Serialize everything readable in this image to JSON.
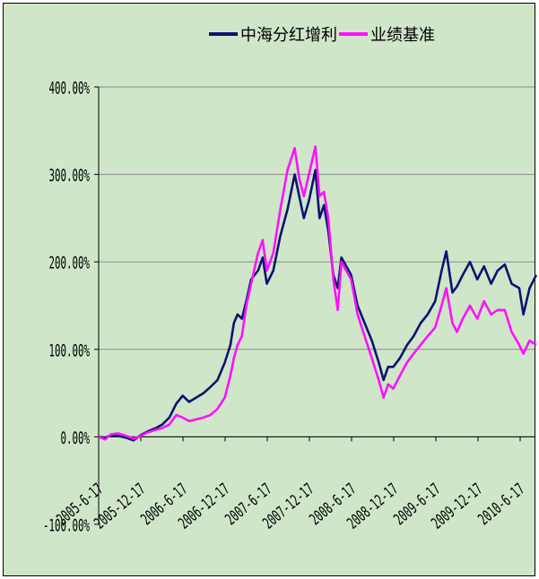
{
  "chart_data": {
    "type": "line",
    "title": "",
    "xlabel": "",
    "ylabel": "",
    "ylim": [
      -1.0,
      4.0
    ],
    "y_tick_labels": [
      "400.00%",
      "300.00%",
      "200.00%",
      "100.00%",
      "0.00%",
      "-100.00%"
    ],
    "x_tick_labels": [
      "2005-6-17",
      "2005-12-17",
      "2006-6-17",
      "2006-12-17",
      "2007-6-17",
      "2007-12-17",
      "2008-6-17",
      "2008-12-17",
      "2009-6-17",
      "2009-12-17",
      "2010-6-17"
    ],
    "grid": "horizontal",
    "legend_position": "top",
    "series": [
      {
        "name": "中海分红增利",
        "color": "#0a1470",
        "points": [
          [
            "2005-06-17",
            0.0
          ],
          [
            "2005-07-15",
            -0.01
          ],
          [
            "2005-08-10",
            0.02
          ],
          [
            "2005-09-10",
            0.01
          ],
          [
            "2005-10-15",
            -0.01
          ],
          [
            "2005-11-15",
            -0.04
          ],
          [
            "2005-12-17",
            0.02
          ],
          [
            "2006-01-15",
            0.06
          ],
          [
            "2006-02-20",
            0.1
          ],
          [
            "2006-03-20",
            0.14
          ],
          [
            "2006-04-20",
            0.22
          ],
          [
            "2006-05-20",
            0.38
          ],
          [
            "2006-06-17",
            0.47
          ],
          [
            "2006-07-15",
            0.4
          ],
          [
            "2006-08-15",
            0.45
          ],
          [
            "2006-09-15",
            0.5
          ],
          [
            "2006-10-15",
            0.57
          ],
          [
            "2006-11-15",
            0.65
          ],
          [
            "2006-12-17",
            0.85
          ],
          [
            "2007-01-10",
            1.05
          ],
          [
            "2007-01-25",
            1.3
          ],
          [
            "2007-02-10",
            1.4
          ],
          [
            "2007-03-01",
            1.35
          ],
          [
            "2007-03-20",
            1.55
          ],
          [
            "2007-04-10",
            1.8
          ],
          [
            "2007-05-10",
            1.9
          ],
          [
            "2007-05-30",
            2.05
          ],
          [
            "2007-06-17",
            1.75
          ],
          [
            "2007-07-15",
            1.9
          ],
          [
            "2007-08-15",
            2.3
          ],
          [
            "2007-09-15",
            2.6
          ],
          [
            "2007-10-16",
            3.0
          ],
          [
            "2007-11-05",
            2.75
          ],
          [
            "2007-11-25",
            2.5
          ],
          [
            "2007-12-17",
            2.7
          ],
          [
            "2008-01-14",
            3.05
          ],
          [
            "2008-02-01",
            2.5
          ],
          [
            "2008-02-20",
            2.65
          ],
          [
            "2008-03-10",
            2.35
          ],
          [
            "2008-04-01",
            1.85
          ],
          [
            "2008-04-20",
            1.7
          ],
          [
            "2008-05-06",
            2.05
          ],
          [
            "2008-06-17",
            1.85
          ],
          [
            "2008-07-15",
            1.5
          ],
          [
            "2008-08-15",
            1.3
          ],
          [
            "2008-09-15",
            1.1
          ],
          [
            "2008-10-15",
            0.85
          ],
          [
            "2008-11-05",
            0.65
          ],
          [
            "2008-11-25",
            0.8
          ],
          [
            "2008-12-17",
            0.8
          ],
          [
            "2009-01-15",
            0.9
          ],
          [
            "2009-02-15",
            1.05
          ],
          [
            "2009-03-15",
            1.15
          ],
          [
            "2009-04-15",
            1.3
          ],
          [
            "2009-05-15",
            1.4
          ],
          [
            "2009-06-17",
            1.55
          ],
          [
            "2009-07-15",
            1.9
          ],
          [
            "2009-08-04",
            2.12
          ],
          [
            "2009-08-31",
            1.65
          ],
          [
            "2009-09-20",
            1.72
          ],
          [
            "2009-10-15",
            1.85
          ],
          [
            "2009-11-15",
            2.0
          ],
          [
            "2009-12-17",
            1.8
          ],
          [
            "2010-01-15",
            1.95
          ],
          [
            "2010-02-15",
            1.75
          ],
          [
            "2010-03-15",
            1.9
          ],
          [
            "2010-04-15",
            1.97
          ],
          [
            "2010-05-15",
            1.75
          ],
          [
            "2010-06-17",
            1.7
          ],
          [
            "2010-07-05",
            1.4
          ],
          [
            "2010-08-01",
            1.7
          ],
          [
            "2010-08-30",
            1.85
          ]
        ]
      },
      {
        "name": "业绩基准",
        "color": "#ff10ff",
        "points": [
          [
            "2005-06-17",
            0.0
          ],
          [
            "2005-07-15",
            -0.03
          ],
          [
            "2005-08-10",
            0.03
          ],
          [
            "2005-09-10",
            0.04
          ],
          [
            "2005-10-15",
            0.01
          ],
          [
            "2005-11-15",
            -0.02
          ],
          [
            "2005-12-17",
            0.01
          ],
          [
            "2006-01-15",
            0.05
          ],
          [
            "2006-02-20",
            0.08
          ],
          [
            "2006-03-20",
            0.1
          ],
          [
            "2006-04-20",
            0.14
          ],
          [
            "2006-05-20",
            0.25
          ],
          [
            "2006-06-17",
            0.22
          ],
          [
            "2006-07-15",
            0.18
          ],
          [
            "2006-08-15",
            0.2
          ],
          [
            "2006-09-15",
            0.22
          ],
          [
            "2006-10-15",
            0.25
          ],
          [
            "2006-11-15",
            0.32
          ],
          [
            "2006-12-17",
            0.45
          ],
          [
            "2007-01-10",
            0.7
          ],
          [
            "2007-01-25",
            0.9
          ],
          [
            "2007-02-10",
            1.05
          ],
          [
            "2007-03-01",
            1.15
          ],
          [
            "2007-03-20",
            1.5
          ],
          [
            "2007-04-10",
            1.75
          ],
          [
            "2007-05-10",
            2.1
          ],
          [
            "2007-05-30",
            2.25
          ],
          [
            "2007-06-17",
            1.9
          ],
          [
            "2007-07-15",
            2.1
          ],
          [
            "2007-08-15",
            2.6
          ],
          [
            "2007-09-15",
            3.05
          ],
          [
            "2007-10-16",
            3.3
          ],
          [
            "2007-11-05",
            2.95
          ],
          [
            "2007-11-25",
            2.75
          ],
          [
            "2007-12-17",
            3.0
          ],
          [
            "2008-01-14",
            3.32
          ],
          [
            "2008-02-01",
            2.75
          ],
          [
            "2008-02-20",
            2.8
          ],
          [
            "2008-03-10",
            2.5
          ],
          [
            "2008-04-01",
            1.8
          ],
          [
            "2008-04-20",
            1.45
          ],
          [
            "2008-05-06",
            2.0
          ],
          [
            "2008-06-17",
            1.8
          ],
          [
            "2008-07-15",
            1.4
          ],
          [
            "2008-08-15",
            1.15
          ],
          [
            "2008-09-15",
            0.9
          ],
          [
            "2008-10-15",
            0.65
          ],
          [
            "2008-11-05",
            0.45
          ],
          [
            "2008-11-25",
            0.6
          ],
          [
            "2008-12-17",
            0.55
          ],
          [
            "2009-01-15",
            0.7
          ],
          [
            "2009-02-15",
            0.85
          ],
          [
            "2009-03-15",
            0.95
          ],
          [
            "2009-04-15",
            1.05
          ],
          [
            "2009-05-15",
            1.15
          ],
          [
            "2009-06-17",
            1.25
          ],
          [
            "2009-07-15",
            1.5
          ],
          [
            "2009-08-04",
            1.7
          ],
          [
            "2009-08-31",
            1.3
          ],
          [
            "2009-09-20",
            1.2
          ],
          [
            "2009-10-15",
            1.35
          ],
          [
            "2009-11-15",
            1.5
          ],
          [
            "2009-12-17",
            1.35
          ],
          [
            "2010-01-15",
            1.55
          ],
          [
            "2010-02-15",
            1.4
          ],
          [
            "2010-03-15",
            1.45
          ],
          [
            "2010-04-15",
            1.45
          ],
          [
            "2010-05-15",
            1.2
          ],
          [
            "2010-06-17",
            1.05
          ],
          [
            "2010-07-05",
            0.95
          ],
          [
            "2010-08-01",
            1.1
          ],
          [
            "2010-08-30",
            1.05
          ]
        ]
      }
    ]
  }
}
